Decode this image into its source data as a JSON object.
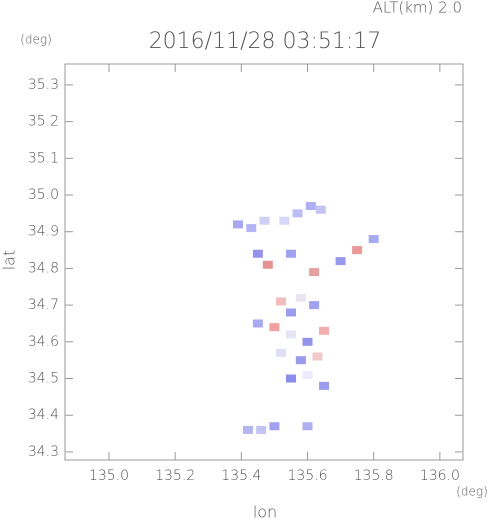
{
  "chart_data": {
    "type": "scatter",
    "title": "2016/11/28 03:51:17",
    "subtitle": "ALT(km) 2.0",
    "x_unit": "(deg)",
    "y_unit": "(deg)",
    "x_label": "lon",
    "y_label": "lat",
    "xlim": [
      134.867,
      136.07
    ],
    "ylim": [
      34.278,
      35.357
    ],
    "xticks": [
      {
        "value": 135.0,
        "label": "135.0"
      },
      135.2,
      135.4,
      135.6,
      135.8,
      {
        "value": 136.0,
        "label": "136.0"
      }
    ],
    "yticks": [
      34.3,
      34.4,
      34.5,
      34.6,
      34.7,
      34.8,
      34.9,
      {
        "value": 35.0,
        "label": "35.0"
      },
      35.1,
      35.2,
      35.3
    ],
    "x": [
      135.39,
      135.43,
      135.47,
      135.53,
      135.57,
      135.61,
      135.64,
      135.45,
      135.48,
      135.55,
      135.62,
      135.7,
      135.75,
      135.8,
      135.52,
      135.55,
      135.58,
      135.62,
      135.5,
      135.55,
      135.6,
      135.65,
      135.52,
      135.58,
      135.63,
      135.55,
      135.6,
      135.65,
      135.45,
      135.42,
      135.46,
      135.5,
      135.6
    ],
    "y": [
      34.92,
      34.91,
      34.93,
      34.93,
      34.95,
      34.97,
      34.96,
      34.84,
      34.81,
      34.84,
      34.79,
      34.82,
      34.85,
      34.88,
      34.71,
      34.68,
      34.72,
      34.7,
      34.64,
      34.62,
      34.6,
      34.63,
      34.57,
      34.55,
      34.56,
      34.5,
      34.51,
      34.48,
      34.65,
      34.36,
      34.36,
      34.37,
      34.37
    ],
    "colors": [
      "#9a9af0",
      "#a8a8f2",
      "#c8c8f6",
      "#d0d0f8",
      "#b0b0f4",
      "#a0a0f0",
      "#b8b8f4",
      "#8080e8",
      "#e08080",
      "#9090ec",
      "#e09090",
      "#8888ea",
      "#e88888",
      "#9a9af0",
      "#f0b0b0",
      "#8a8aec",
      "#e8e0f0",
      "#9090ec",
      "#f09090",
      "#e0e0f4",
      "#8080e8",
      "#f0a0a0",
      "#d8d8f4",
      "#8888ea",
      "#f0c0c0",
      "#7878e6",
      "#e8e8f8",
      "#8a8aec",
      "#9a9af0",
      "#a8a8f0",
      "#b8b8f4",
      "#9090ec",
      "#a0a0f0"
    ]
  }
}
